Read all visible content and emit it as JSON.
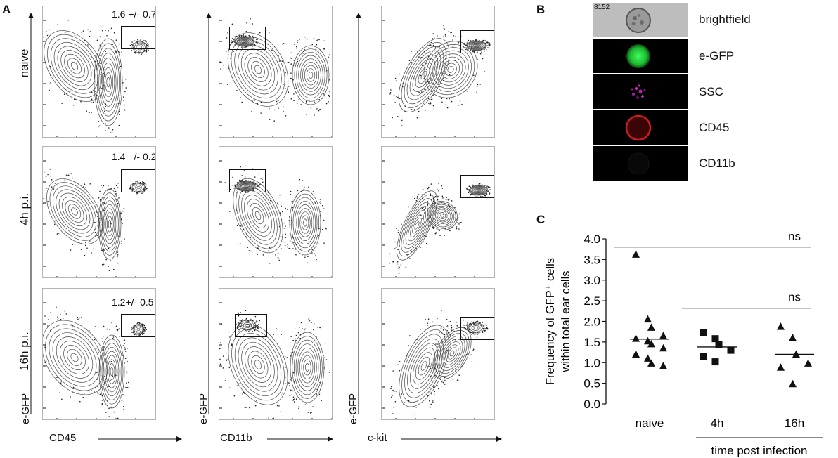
{
  "panel_a": {
    "letter": "A",
    "row_labels": [
      "naive",
      "4h p.i.",
      "16h p.i."
    ],
    "y_axis_label": "e-GFP",
    "x_axis_labels": [
      "CD45",
      "CD11b",
      "c-kit"
    ],
    "gate_values": [
      "1.6 +/- 0.7",
      "1.4 +/- 0.2",
      "1.2+/- 0.5"
    ]
  },
  "panel_b": {
    "letter": "B",
    "image_id": "8152",
    "channels": [
      {
        "label": "brightfield",
        "color": "#bdbdbd"
      },
      {
        "label": "e-GFP",
        "color": "#22c33a"
      },
      {
        "label": "SSC",
        "color": "#c21cae"
      },
      {
        "label": "CD45",
        "color": "#c0171b"
      },
      {
        "label": "CD11b",
        "color": "#0a0a0a"
      }
    ]
  },
  "panel_c": {
    "letter": "C",
    "chart_data": {
      "type": "scatter",
      "ylabel_line1": "Frequency of GFP⁺ cells",
      "ylabel_line2": "within total ear cells",
      "xlabel": "time post infection",
      "categories": [
        "naive",
        "4h",
        "16h"
      ],
      "ylim": [
        0.0,
        4.0
      ],
      "yticks": [
        "0.0",
        "0.5",
        "1.0",
        "1.5",
        "2.0",
        "2.5",
        "3.0",
        "3.5",
        "4.0"
      ],
      "series": [
        {
          "category": "naive",
          "marker": "triangle",
          "mean": 1.57,
          "values": [
            3.62,
            2.05,
            1.85,
            1.65,
            1.58,
            1.52,
            1.45,
            1.35,
            1.2,
            1.1,
            0.98,
            0.92
          ]
        },
        {
          "category": "4h",
          "marker": "square",
          "mean": 1.38,
          "values": [
            1.72,
            1.58,
            1.43,
            1.3,
            1.15,
            1.02
          ]
        },
        {
          "category": "16h",
          "marker": "triangle",
          "mean": 1.2,
          "values": [
            1.87,
            1.6,
            1.2,
            0.98,
            0.88,
            0.48
          ]
        }
      ],
      "significance": [
        {
          "from": "naive",
          "to": "16h",
          "y": 3.8,
          "label": "ns"
        },
        {
          "from": "4h",
          "to": "16h",
          "y": 2.32,
          "label": "ns"
        }
      ]
    }
  }
}
